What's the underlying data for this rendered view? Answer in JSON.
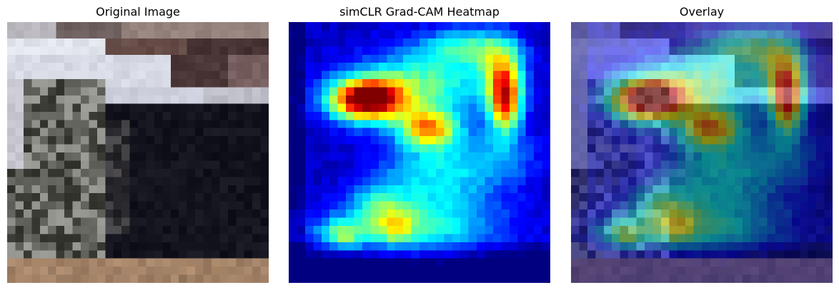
{
  "figure": {
    "panels": [
      {
        "title": "Original Image"
      },
      {
        "title": "simCLR Grad-CAM Heatmap"
      },
      {
        "title": "Overlay"
      }
    ]
  }
}
